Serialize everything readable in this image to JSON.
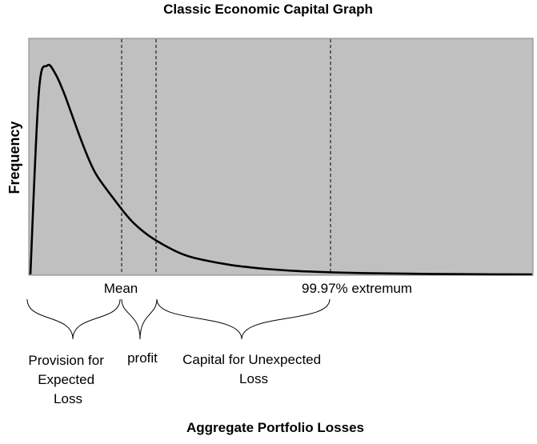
{
  "chart_data": {
    "type": "line",
    "title": "Classic Economic Capital Graph",
    "xlabel": "Aggregate Portfolio Losses",
    "ylabel": "Frequency",
    "grid": false,
    "legend": "none",
    "markers": [
      {
        "name": "mean",
        "label": "Mean"
      },
      {
        "name": "profit-boundary",
        "label": ""
      },
      {
        "name": "extremum",
        "label": "99.97% extremum"
      }
    ],
    "region_labels": [
      {
        "name": "provision",
        "lines": [
          "Provision for",
          "Expected",
          "Loss"
        ]
      },
      {
        "name": "profit",
        "lines": [
          "profit"
        ]
      },
      {
        "name": "capital",
        "lines": [
          "Capital for Unexpected",
          "Loss"
        ]
      }
    ],
    "series": [
      {
        "shape": "right-skewed loss distribution",
        "x": [
          0,
          0.5,
          1,
          1.5,
          2,
          2.5,
          3,
          3.5,
          4,
          5,
          6,
          7,
          8,
          9,
          10,
          12,
          14,
          16,
          18,
          20,
          23,
          26,
          30
        ],
        "y": [
          0,
          0.87,
          1.0,
          0.96,
          0.87,
          0.76,
          0.65,
          0.55,
          0.47,
          0.36,
          0.26,
          0.19,
          0.14,
          0.1,
          0.075,
          0.045,
          0.027,
          0.016,
          0.01,
          0.006,
          0.003,
          0.001,
          0
        ]
      }
    ]
  },
  "colors": {
    "plot_bg": "#c0c0c0",
    "curve": "#000000",
    "page_bg": "#ffffff"
  }
}
